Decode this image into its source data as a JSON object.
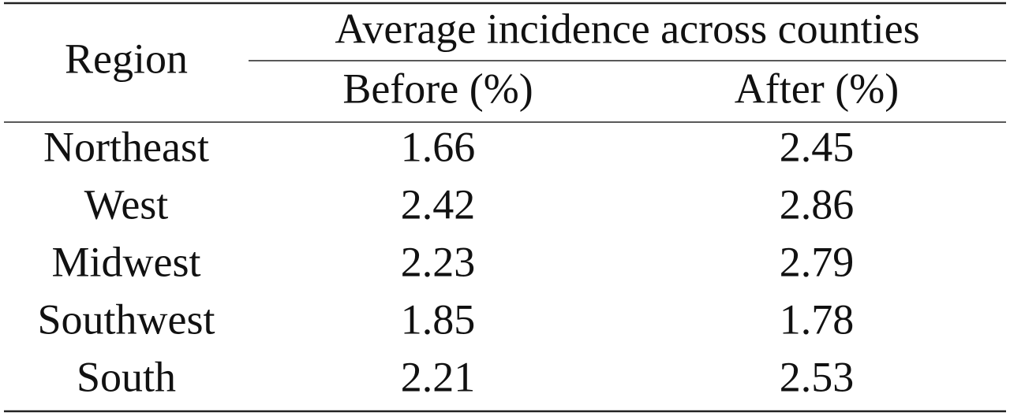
{
  "table": {
    "header": {
      "region": "Region",
      "group": "Average incidence across counties",
      "columns": [
        "Before (%)",
        "After (%)"
      ]
    },
    "rows": [
      [
        "Northeast",
        1.66,
        2.45
      ],
      [
        "West",
        2.42,
        2.86
      ],
      [
        "Midwest",
        2.23,
        2.79
      ],
      [
        "Southwest",
        1.85,
        1.78
      ],
      [
        "South",
        2.21,
        2.53
      ]
    ]
  }
}
